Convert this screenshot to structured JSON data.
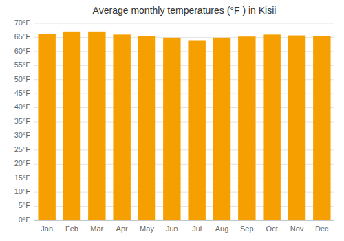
{
  "chart_data": {
    "type": "bar",
    "title": "Average monthly temperatures (°F ) in Kisii",
    "categories": [
      "Jan",
      "Feb",
      "Mar",
      "Apr",
      "May",
      "Jun",
      "Jul",
      "Aug",
      "Sep",
      "Oct",
      "Nov",
      "Dec"
    ],
    "values": [
      66.2,
      67.1,
      67.1,
      66.0,
      65.5,
      64.9,
      64.0,
      64.9,
      65.3,
      66.0,
      65.7,
      65.5
    ],
    "color": "#F5A000",
    "ylim": [
      0,
      70
    ],
    "yticks": [
      {
        "value": 0,
        "label": "0°F"
      },
      {
        "value": 5,
        "label": "5°F"
      },
      {
        "value": 10,
        "label": "10°F"
      },
      {
        "value": 15,
        "label": "15°F"
      },
      {
        "value": 20,
        "label": "20°F"
      },
      {
        "value": 25,
        "label": "25°F"
      },
      {
        "value": 30,
        "label": "30°F"
      },
      {
        "value": 35,
        "label": "35°F"
      },
      {
        "value": 40,
        "label": "40°F"
      },
      {
        "value": 45,
        "label": "45°F"
      },
      {
        "value": 50,
        "label": "50°F"
      },
      {
        "value": 55,
        "label": "55°F"
      },
      {
        "value": 60,
        "label": "60°F"
      },
      {
        "value": 65,
        "label": "65°F"
      },
      {
        "value": 70,
        "label": "70°F"
      }
    ],
    "grid": true
  }
}
